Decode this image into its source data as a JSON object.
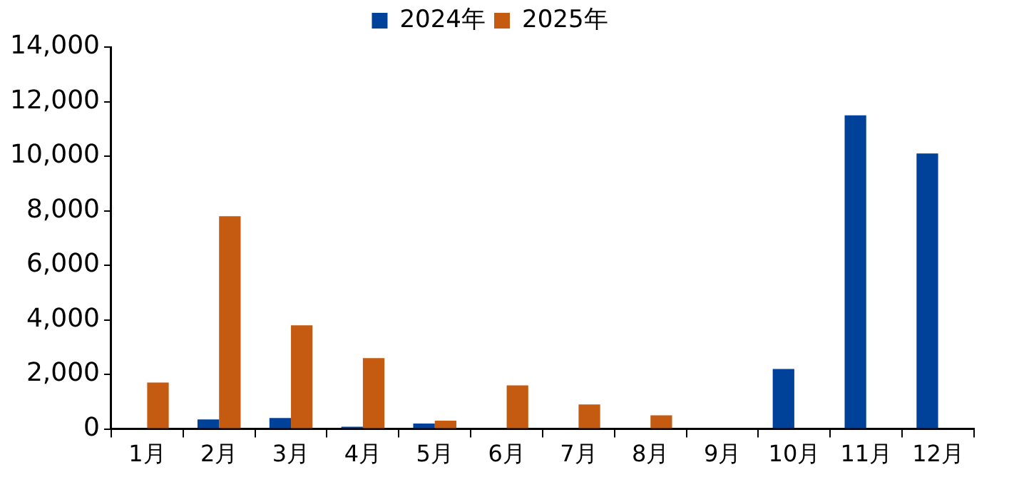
{
  "chart_data": {
    "type": "bar",
    "categories": [
      "1月",
      "2月",
      "3月",
      "4月",
      "5月",
      "6月",
      "7月",
      "8月",
      "9月",
      "10月",
      "11月",
      "12月"
    ],
    "series": [
      {
        "name": "2024年",
        "color": "#00429a",
        "values": [
          null,
          350,
          400,
          80,
          200,
          null,
          null,
          null,
          null,
          2200,
          11500,
          10100
        ]
      },
      {
        "name": "2025年",
        "color": "#c55a11",
        "values": [
          1700,
          7800,
          3800,
          2600,
          300,
          1600,
          900,
          500,
          null,
          null,
          null,
          null
        ]
      }
    ],
    "ylim": [
      0,
      14000
    ],
    "yticks": [
      {
        "value": 0,
        "label": "0"
      },
      {
        "value": 2000,
        "label": "2,000"
      },
      {
        "value": 4000,
        "label": "4,000"
      },
      {
        "value": 6000,
        "label": "6,000"
      },
      {
        "value": 8000,
        "label": "8,000"
      },
      {
        "value": 10000,
        "label": "10,000"
      },
      {
        "value": 12000,
        "label": "12,000"
      },
      {
        "value": 14000,
        "label": "14,000"
      }
    ],
    "grid": false,
    "legend": "top"
  }
}
